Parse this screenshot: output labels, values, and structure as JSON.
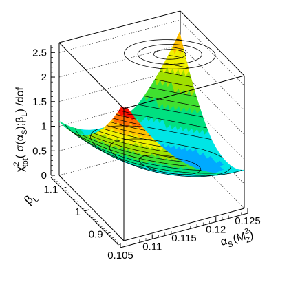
{
  "chart_data": {
    "type": "surface",
    "title": "",
    "xlabel_main": "α",
    "xlabel_sub": "S",
    "xlabel_arg": "(M",
    "xlabel_sup": "2",
    "xlabel_arg_sub": "Z",
    "xlabel_close": ")",
    "ylabel_main": "β",
    "ylabel_sub": "L",
    "zlabel_pre": "χ",
    "zlabel_sup": "2",
    "zlabel_sub": "tot",
    "zlabel_mid1": "( σ(α",
    "zlabel_mid_sub": "S",
    "zlabel_mid2": ");β",
    "zlabel_mid_sub2": "L",
    "zlabel_post": ") /dof",
    "x_ticks": [
      "0.105",
      "0.11",
      "0.115",
      "0.12",
      "0.125"
    ],
    "y_ticks": [
      "0.9",
      "1",
      "1.1"
    ],
    "z_ticks": [
      "0",
      "0.5",
      "1",
      "1.5",
      "2",
      "2.5"
    ],
    "xlim": [
      0.105,
      0.125
    ],
    "ylim": [
      0.85,
      1.15
    ],
    "zlim": [
      0,
      2.7
    ],
    "minimum": {
      "alpha_s": 0.118,
      "beta_l": 1.0,
      "chi2": 0.4
    },
    "corners": [
      {
        "alpha_s": 0.105,
        "beta_l": 0.85,
        "chi2": 1.0
      },
      {
        "alpha_s": 0.125,
        "beta_l": 0.85,
        "chi2": 1.5
      },
      {
        "alpha_s": 0.125,
        "beta_l": 1.15,
        "chi2": 2.7
      },
      {
        "alpha_s": 0.105,
        "beta_l": 1.15,
        "chi2": 1.9
      }
    ],
    "colormap": [
      "#0080ff",
      "#00aaff",
      "#00e5e5",
      "#00e080",
      "#40e030",
      "#a0e000",
      "#f0f000",
      "#ffc000",
      "#ff7000",
      "#ff1000"
    ]
  }
}
